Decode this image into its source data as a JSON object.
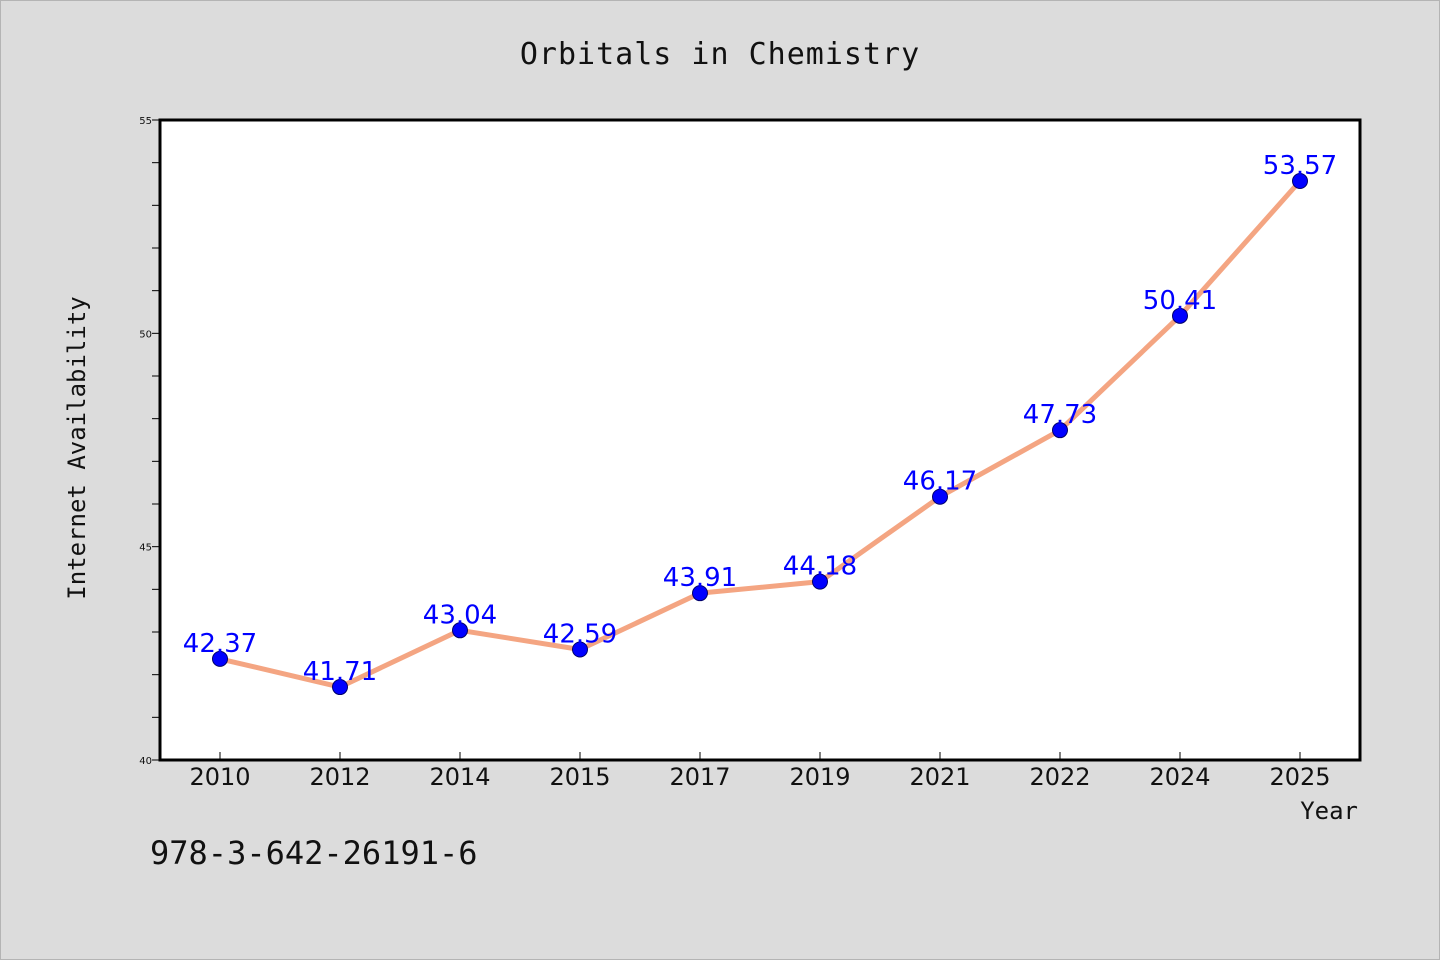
{
  "chart_data": {
    "type": "line",
    "title": "Orbitals in Chemistry",
    "xlabel": "Year",
    "ylabel": "Internet Availability",
    "categories": [
      "2010",
      "2012",
      "2014",
      "2015",
      "2017",
      "2019",
      "2021",
      "2022",
      "2024",
      "2025"
    ],
    "values": [
      42.37,
      41.71,
      43.04,
      42.59,
      43.91,
      44.18,
      46.17,
      47.73,
      50.41,
      53.57
    ],
    "data_labels": [
      "42.37",
      "41.71",
      "43.04",
      "42.59",
      "43.91",
      "44.18",
      "46.17",
      "47.73",
      "50.41",
      "53.57"
    ],
    "ylim": [
      40,
      55
    ],
    "yticks": [
      40,
      45,
      50,
      55
    ],
    "grid": false,
    "legend": "none",
    "colors": {
      "line": "#f4a582",
      "marker": "#0000ff",
      "data_label": "#0000ff",
      "background": "#dcdcdc",
      "plot_background": "#ffffff"
    }
  },
  "footer": {
    "isbn": "978-3-642-26191-6"
  }
}
